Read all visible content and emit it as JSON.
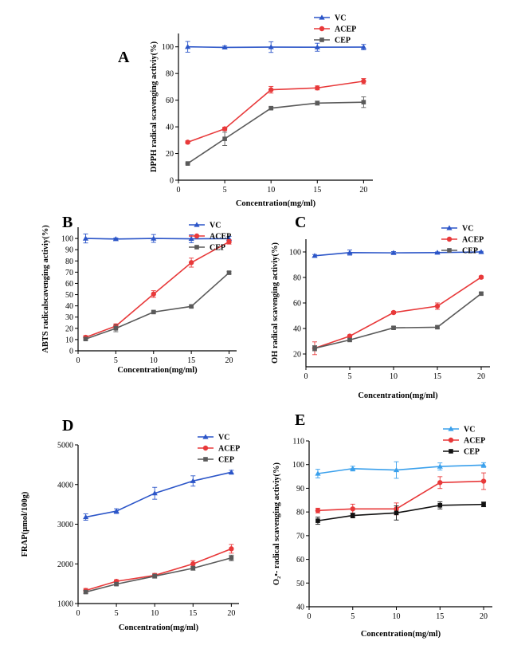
{
  "colors": {
    "VC_blue": "#2b55c8",
    "VC_light": "#3aa0ec",
    "ACEP": "#e8393a",
    "CEP": "#5a5a5a",
    "CEP_E": "#111111"
  },
  "chart_data": [
    {
      "panel": "A",
      "type": "line",
      "xlabel": "Concentration(mg/ml)",
      "ylabel": "DPPH radical scavenging activiy(%)",
      "x": [
        1,
        5,
        10,
        15,
        20
      ],
      "xticks": [
        0,
        5,
        10,
        15,
        20
      ],
      "xlim": [
        0,
        21
      ],
      "yticks": [
        0,
        20,
        40,
        60,
        80,
        100
      ],
      "ylim": [
        0,
        110
      ],
      "legend": "top-right",
      "series": [
        {
          "name": "VC",
          "color": "#2b55c8",
          "marker": "triangle",
          "values": [
            100,
            99.6,
            99.8,
            99.7,
            99.8
          ],
          "err": [
            4,
            1,
            4,
            3,
            2
          ]
        },
        {
          "name": "ACEP",
          "color": "#e8393a",
          "marker": "circle",
          "values": [
            28.5,
            38.5,
            67.8,
            69.2,
            74.2
          ],
          "err": [
            1,
            1.2,
            2.5,
            1.5,
            2
          ]
        },
        {
          "name": "CEP",
          "color": "#5a5a5a",
          "marker": "square",
          "values": [
            12.5,
            31,
            54,
            57.8,
            58.5
          ],
          "err": [
            0.5,
            5,
            1,
            1.5,
            4
          ]
        }
      ]
    },
    {
      "panel": "B",
      "type": "line",
      "xlabel": "Concentration(mg/ml)",
      "ylabel": "ABTS radicalscavenging activiy(%)",
      "x": [
        1,
        5,
        10,
        15,
        20
      ],
      "xticks": [
        0,
        5,
        10,
        15,
        20
      ],
      "xlim": [
        0,
        21
      ],
      "yticks": [
        0,
        10,
        20,
        30,
        40,
        50,
        60,
        70,
        80,
        90,
        100
      ],
      "ylim": [
        0,
        110
      ],
      "legend": "top-right",
      "series": [
        {
          "name": "VC",
          "color": "#2b55c8",
          "marker": "triangle",
          "values": [
            100,
            99.5,
            100,
            99.7,
            99.8
          ],
          "err": [
            4,
            1,
            3.5,
            3.5,
            2
          ]
        },
        {
          "name": "ACEP",
          "color": "#e8393a",
          "marker": "circle",
          "values": [
            12,
            22,
            50.5,
            78.5,
            97
          ],
          "err": [
            1.5,
            2,
            3,
            4,
            2
          ]
        },
        {
          "name": "CEP",
          "color": "#5a5a5a",
          "marker": "square",
          "values": [
            10.5,
            20,
            34.5,
            39.5,
            69.5
          ],
          "err": [
            1,
            3,
            1,
            1,
            1
          ]
        }
      ]
    },
    {
      "panel": "C",
      "type": "line",
      "xlabel": "Concentration(mg/ml)",
      "ylabel": "OH radical scavenging activiy(%)",
      "x": [
        1,
        5,
        10,
        15,
        20
      ],
      "xticks": [
        0,
        5,
        10,
        15,
        20
      ],
      "xlim": [
        0,
        21
      ],
      "yticks": [
        20,
        40,
        60,
        80,
        100
      ],
      "ylim": [
        10,
        110
      ],
      "legend": "top-right",
      "series": [
        {
          "name": "VC",
          "color": "#2b55c8",
          "marker": "triangle",
          "values": [
            97,
            99.5,
            99.3,
            99.5,
            100
          ],
          "err": [
            1,
            2,
            1,
            0.5,
            0.5
          ]
        },
        {
          "name": "ACEP",
          "color": "#e8393a",
          "marker": "circle",
          "values": [
            24.5,
            34,
            52.5,
            57.5,
            80.2
          ],
          "err": [
            5,
            1,
            1,
            2.5,
            1
          ]
        },
        {
          "name": "CEP",
          "color": "#5a5a5a",
          "marker": "square",
          "values": [
            24.5,
            31,
            40.5,
            41,
            67.3
          ],
          "err": [
            2,
            1,
            1,
            1,
            1
          ]
        }
      ]
    },
    {
      "panel": "D",
      "type": "line",
      "xlabel": "Concentration(mg/ml)",
      "ylabel": "FRAP(μmol/100g)",
      "x": [
        1,
        5,
        10,
        15,
        20
      ],
      "xticks": [
        0,
        5,
        10,
        15,
        20
      ],
      "xlim": [
        0,
        21
      ],
      "yticks": [
        1000,
        2000,
        3000,
        4000,
        5000
      ],
      "ylim": [
        1000,
        5000
      ],
      "legend": "top-right",
      "series": [
        {
          "name": "VC",
          "color": "#2b55c8",
          "marker": "triangle",
          "values": [
            3180,
            3330,
            3780,
            4090,
            4310
          ],
          "err": [
            80,
            60,
            150,
            130,
            50
          ]
        },
        {
          "name": "ACEP",
          "color": "#e8393a",
          "marker": "circle",
          "values": [
            1330,
            1560,
            1710,
            2000,
            2380
          ],
          "err": [
            50,
            40,
            50,
            80,
            110
          ]
        },
        {
          "name": "CEP",
          "color": "#5a5a5a",
          "marker": "square",
          "values": [
            1290,
            1490,
            1690,
            1890,
            2150
          ],
          "err": [
            40,
            40,
            50,
            50,
            70
          ]
        }
      ]
    },
    {
      "panel": "E",
      "type": "line",
      "xlabel": "Concentration(mg/ml)",
      "ylabel": "O₂•- radical scavenging activiy(%)",
      "x": [
        1,
        5,
        10,
        15,
        20
      ],
      "xticks": [
        0,
        5,
        10,
        15,
        20
      ],
      "xlim": [
        0,
        21
      ],
      "yticks": [
        40,
        50,
        60,
        70,
        80,
        90,
        100,
        110
      ],
      "ylim": [
        40,
        110
      ],
      "legend": "top-right",
      "series": [
        {
          "name": "VC",
          "color": "#3aa0ec",
          "marker": "triangle",
          "values": [
            96.2,
            98.3,
            97.7,
            99.2,
            99.8
          ],
          "err": [
            1.8,
            1,
            3.5,
            1.5,
            1
          ]
        },
        {
          "name": "ACEP",
          "color": "#e8393a",
          "marker": "circle",
          "values": [
            80.6,
            81.3,
            81.3,
            92.4,
            93
          ],
          "err": [
            1,
            2,
            2.5,
            2.5,
            3.5
          ]
        },
        {
          "name": "CEP",
          "color": "#111111",
          "marker": "square",
          "values": [
            76.3,
            78.5,
            79.6,
            82.8,
            83.2
          ],
          "err": [
            1.5,
            1,
            3,
            1.5,
            1
          ]
        }
      ]
    }
  ]
}
